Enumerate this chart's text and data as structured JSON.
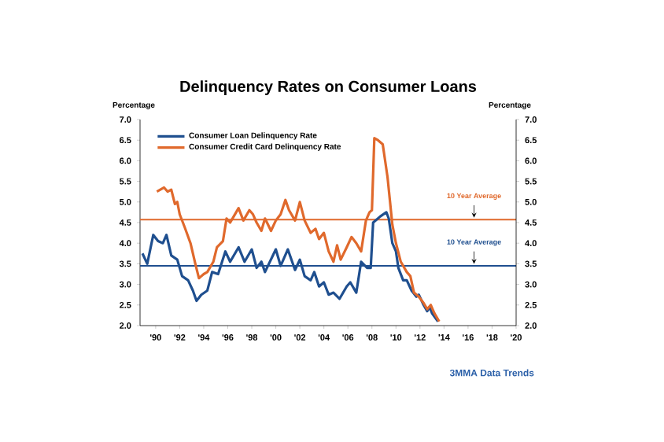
{
  "chart_data": {
    "type": "line",
    "title": "Delinquency Rates on Consumer Loans",
    "ylabel": "Percentage",
    "y2label": "Percentage",
    "xlim": [
      1988.7,
      2020
    ],
    "xticks": [
      {
        "value": 1990,
        "label": "'90"
      },
      {
        "value": 1992,
        "label": "'92"
      },
      {
        "value": 1994,
        "label": "'94"
      },
      {
        "value": 1996,
        "label": "'96"
      },
      {
        "value": 1998,
        "label": "'98"
      },
      {
        "value": 2000,
        "label": "'00"
      },
      {
        "value": 2002,
        "label": "'02"
      },
      {
        "value": 2004,
        "label": "'04"
      },
      {
        "value": 2006,
        "label": "'06"
      },
      {
        "value": 2008,
        "label": "'08"
      },
      {
        "value": 2010,
        "label": "'10"
      },
      {
        "value": 2012,
        "label": "'12"
      },
      {
        "value": 2014,
        "label": "'14"
      },
      {
        "value": 2016,
        "label": "'16"
      },
      {
        "value": 2018,
        "label": "'18"
      },
      {
        "value": 2020,
        "label": "'20"
      }
    ],
    "ylim": [
      2.0,
      7.0
    ],
    "yticks": [
      {
        "value": 2.0,
        "label": "2.0"
      },
      {
        "value": 2.5,
        "label": "2.5"
      },
      {
        "value": 3.0,
        "label": "3.0"
      },
      {
        "value": 3.5,
        "label": "3.5"
      },
      {
        "value": 4.0,
        "label": "4.0"
      },
      {
        "value": 4.5,
        "label": "4.5"
      },
      {
        "value": 5.0,
        "label": "5.0"
      },
      {
        "value": 5.5,
        "label": "5.5"
      },
      {
        "value": 6.0,
        "label": "6.0"
      },
      {
        "value": 6.5,
        "label": "6.5"
      },
      {
        "value": 7.0,
        "label": "7.0"
      }
    ],
    "y2lim": [
      2.0,
      7.0
    ],
    "y2ticks": [
      {
        "value": 2.0,
        "label": "2.0"
      },
      {
        "value": 2.5,
        "label": "2.5"
      },
      {
        "value": 3.0,
        "label": "3.0"
      },
      {
        "value": 3.5,
        "label": "3.5"
      },
      {
        "value": 4.0,
        "label": "4.0"
      },
      {
        "value": 4.5,
        "label": "4.5"
      },
      {
        "value": 5.0,
        "label": "5.0"
      },
      {
        "value": 5.5,
        "label": "5.5"
      },
      {
        "value": 6.0,
        "label": "6.0"
      },
      {
        "value": 6.5,
        "label": "6.5"
      },
      {
        "value": 7.0,
        "label": "7.0"
      }
    ],
    "legend": "top left",
    "marker": "none",
    "line_style": "solid",
    "series": [
      {
        "name": "Consumer Loan Delinquency Rate",
        "color": "#1f4f8f",
        "x": [
          1988.9,
          1989.3,
          1989.8,
          1990.2,
          1990.6,
          1990.9,
          1991.3,
          1991.8,
          1992.2,
          1992.7,
          1993.1,
          1993.4,
          1993.8,
          1994.3,
          1994.7,
          1995.2,
          1995.8,
          1996.2,
          1996.9,
          1997.4,
          1998.0,
          1998.4,
          1998.8,
          1999.1,
          2000.0,
          2000.4,
          2001.0,
          2001.6,
          2002.0,
          2002.4,
          2002.9,
          2003.2,
          2003.6,
          2004.0,
          2004.4,
          2004.8,
          2005.3,
          2005.9,
          2006.2,
          2006.7,
          2007.1,
          2007.6,
          2007.9,
          2008.1,
          2008.7,
          2009.2,
          2009.4,
          2009.7,
          2010.0,
          2010.2,
          2010.6,
          2010.9,
          2011.3,
          2011.7,
          2011.9,
          2012.3,
          2012.6,
          2012.8,
          2013.0,
          2013.5
        ],
        "values": [
          3.75,
          3.5,
          4.2,
          4.05,
          4.0,
          4.2,
          3.7,
          3.6,
          3.2,
          3.1,
          2.85,
          2.6,
          2.75,
          2.85,
          3.3,
          3.25,
          3.8,
          3.55,
          3.9,
          3.55,
          3.85,
          3.4,
          3.55,
          3.3,
          3.85,
          3.45,
          3.85,
          3.35,
          3.6,
          3.2,
          3.1,
          3.3,
          2.95,
          3.05,
          2.75,
          2.8,
          2.65,
          2.95,
          3.05,
          2.8,
          3.55,
          3.4,
          3.4,
          4.5,
          4.65,
          4.75,
          4.6,
          4.0,
          3.8,
          3.4,
          3.1,
          3.1,
          2.85,
          2.7,
          2.75,
          2.5,
          2.35,
          2.45,
          2.3,
          2.1
        ]
      },
      {
        "name": "Consumer Credit Card Delinquency Rate",
        "color": "#e0692c",
        "x": [
          1990.1,
          1990.4,
          1990.7,
          1991.0,
          1991.3,
          1991.6,
          1991.8,
          1992.0,
          1992.4,
          1992.9,
          1993.3,
          1993.6,
          1994.0,
          1994.3,
          1994.8,
          1995.1,
          1995.6,
          1995.9,
          1996.2,
          1996.5,
          1996.9,
          1997.3,
          1997.8,
          1998.1,
          1998.4,
          1998.8,
          1999.1,
          1999.6,
          2000.0,
          2000.4,
          2000.8,
          2001.1,
          2001.6,
          2002.0,
          2002.4,
          2002.9,
          2003.3,
          2003.6,
          2004.0,
          2004.4,
          2004.8,
          2005.1,
          2005.4,
          2005.9,
          2006.3,
          2006.7,
          2007.1,
          2007.5,
          2007.8,
          2008.0,
          2008.2,
          2008.5,
          2008.9,
          2009.3,
          2009.7,
          2010.0,
          2010.4,
          2010.9,
          2011.2,
          2011.5,
          2011.9,
          2012.3,
          2012.6,
          2012.9,
          2013.2,
          2013.6
        ],
        "values": [
          5.25,
          5.3,
          5.35,
          5.25,
          5.3,
          4.95,
          5.0,
          4.7,
          4.4,
          4.0,
          3.5,
          3.15,
          3.25,
          3.3,
          3.55,
          3.9,
          4.05,
          4.6,
          4.5,
          4.65,
          4.85,
          4.55,
          4.8,
          4.7,
          4.5,
          4.3,
          4.6,
          4.3,
          4.55,
          4.7,
          5.05,
          4.8,
          4.55,
          5.0,
          4.55,
          4.25,
          4.35,
          4.1,
          4.25,
          3.8,
          3.55,
          3.95,
          3.6,
          3.9,
          4.15,
          4.0,
          3.8,
          4.55,
          4.75,
          4.8,
          6.55,
          6.5,
          6.4,
          5.6,
          4.45,
          4.0,
          3.55,
          3.3,
          3.2,
          2.8,
          2.7,
          2.55,
          2.4,
          2.5,
          2.3,
          2.1
        ]
      }
    ],
    "ref_lines": [
      {
        "axis": "y",
        "value": 4.57,
        "label": "10 Year Average",
        "color": "#e0692c"
      },
      {
        "axis": "y",
        "value": 3.45,
        "label": "10 Year Average",
        "color": "#1f4f8f"
      }
    ],
    "annotations": [
      "3MMA Data Trends"
    ]
  }
}
